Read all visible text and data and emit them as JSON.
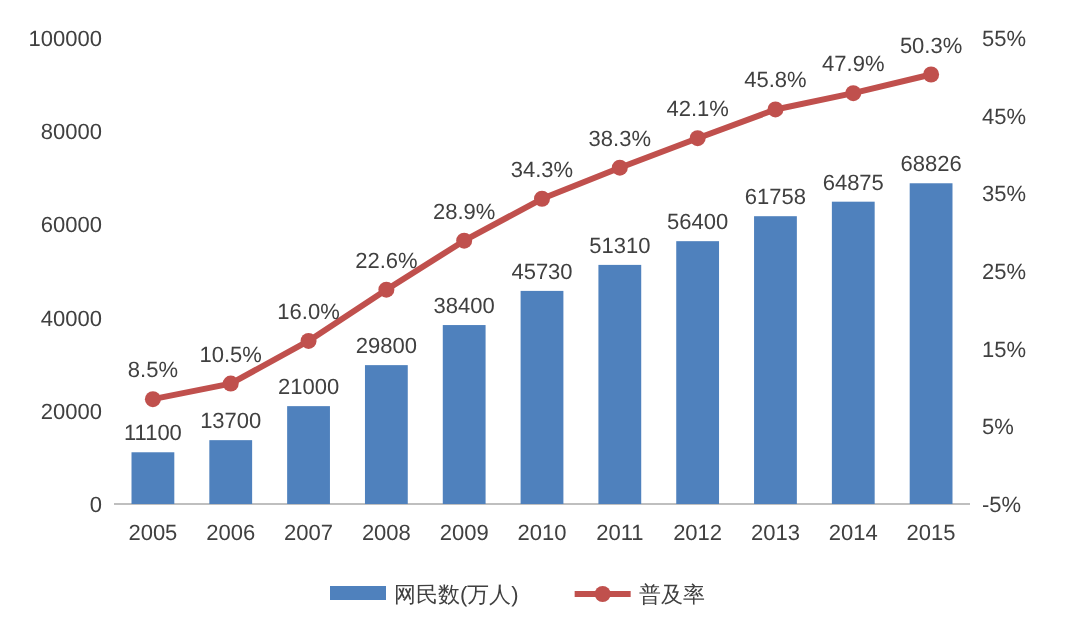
{
  "chart_data": {
    "type": "bar",
    "categories": [
      "2005",
      "2006",
      "2007",
      "2008",
      "2009",
      "2010",
      "2011",
      "2012",
      "2013",
      "2014",
      "2015"
    ],
    "series": [
      {
        "name": "网民数(万人)",
        "color": "#4f81bd",
        "values": [
          11100,
          13700,
          21000,
          29800,
          38400,
          45730,
          51310,
          56400,
          61758,
          64875,
          68826
        ],
        "value_labels": [
          "11100",
          "13700",
          "21000",
          "29800",
          "38400",
          "45730",
          "51310",
          "56400",
          "61758",
          "64875",
          "68826"
        ]
      },
      {
        "name": "普及率",
        "type": "line",
        "axis": "y2",
        "color": "#c0504d",
        "marker": "circle",
        "values": [
          8.5,
          10.5,
          16.0,
          22.6,
          28.9,
          34.3,
          38.3,
          42.1,
          45.8,
          47.9,
          50.3
        ],
        "value_labels": [
          "8.5%",
          "10.5%",
          "16.0%",
          "22.6%",
          "28.9%",
          "34.3%",
          "38.3%",
          "42.1%",
          "45.8%",
          "47.9%",
          "50.3%"
        ]
      }
    ],
    "ylim": [
      0,
      100000
    ],
    "yticks": [
      0,
      20000,
      40000,
      60000,
      80000,
      100000
    ],
    "y2lim": [
      -5,
      55
    ],
    "y2ticks": [
      {
        "value": -5,
        "label": "-5%"
      },
      {
        "value": 5,
        "label": "5%"
      },
      {
        "value": 15,
        "label": "15%"
      },
      {
        "value": 25,
        "label": "25%"
      },
      {
        "value": 35,
        "label": "35%"
      },
      {
        "value": 45,
        "label": "45%"
      },
      {
        "value": 55,
        "label": "55%"
      }
    ],
    "grid": false,
    "legend": "bottom"
  }
}
